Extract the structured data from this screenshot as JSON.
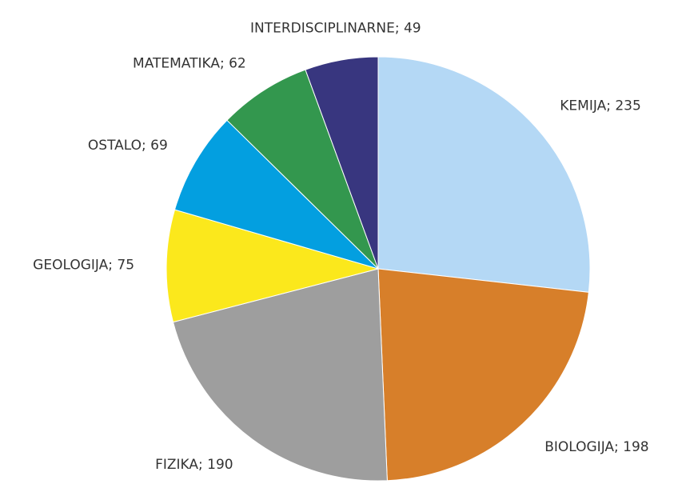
{
  "chart_data": {
    "type": "pie",
    "values": [
      235,
      198,
      190,
      75,
      69,
      62,
      49
    ],
    "value_labels": [
      "KEMIJA; 235",
      "BIOLOGIJA; 198",
      "FIZIKA; 190",
      "GEOLOGIJA; 75",
      "OSTALO; 69",
      "MATEMATIKA; 62",
      "INTERDISCIPLINARNE; 49"
    ],
    "colors": [
      "#b4d8f5",
      "#d77f2a",
      "#9e9e9e",
      "#fbe81c",
      "#039fe0",
      "#33974e",
      "#38367f"
    ]
  }
}
